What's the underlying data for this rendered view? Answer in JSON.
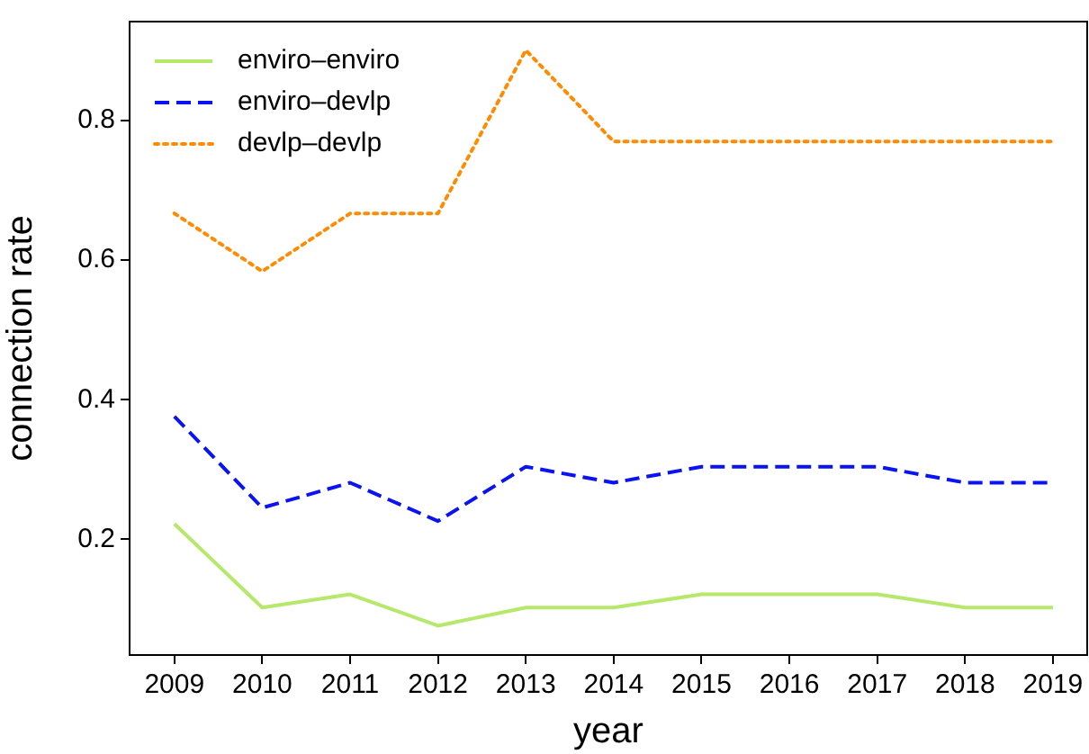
{
  "chart_data": {
    "type": "line",
    "xlabel": "year",
    "ylabel": "connection rate",
    "x": [
      2009,
      2010,
      2011,
      2012,
      2013,
      2014,
      2015,
      2016,
      2017,
      2018,
      2019
    ],
    "series": [
      {
        "name": "enviro–enviro",
        "color": "#b5e86b",
        "line_style": "solid",
        "values": [
          0.222,
          0.102,
          0.121,
          0.076,
          0.102,
          0.102,
          0.121,
          0.121,
          0.121,
          0.102,
          0.102
        ]
      },
      {
        "name": "enviro–devlp",
        "color": "#0a14f0",
        "line_style": "dashed",
        "values": [
          0.376,
          0.245,
          0.281,
          0.226,
          0.304,
          0.281,
          0.304,
          0.304,
          0.304,
          0.281,
          0.281
        ]
      },
      {
        "name": "devlp–devlp",
        "color": "#ff8c00",
        "line_style": "dotted",
        "values": [
          0.667,
          0.584,
          0.667,
          0.667,
          0.901,
          0.77,
          0.77,
          0.77,
          0.77,
          0.77,
          0.77
        ]
      }
    ],
    "xlim": [
      2008.49,
      2019.39
    ],
    "xticks": [
      2009,
      2010,
      2011,
      2012,
      2013,
      2014,
      2015,
      2016,
      2017,
      2018,
      2019
    ],
    "ylim": [
      0.034,
      0.942
    ],
    "yticks": [
      0.2,
      0.4,
      0.6,
      0.8
    ],
    "grid": false,
    "legend": "top left",
    "marker": "none"
  }
}
